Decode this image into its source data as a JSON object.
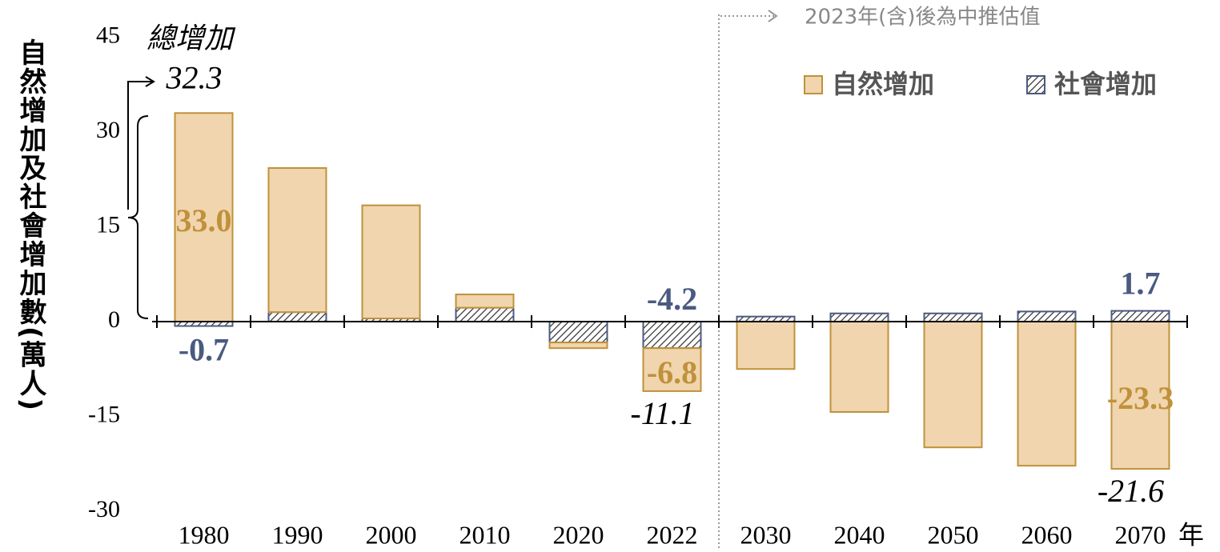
{
  "chart_data": {
    "type": "bar",
    "categories": [
      "1980",
      "1990",
      "2000",
      "2010",
      "2020",
      "2022",
      "2030",
      "2040",
      "2050",
      "2060",
      "2070"
    ],
    "series": [
      {
        "name": "自然增加",
        "color": "#f0d5ae",
        "values": [
          33.0,
          22.8,
          17.9,
          2.1,
          -0.9,
          -6.8,
          -7.5,
          -14.3,
          -19.9,
          -22.8,
          -23.3
        ],
        "value_labels": [
          "33.0",
          null,
          null,
          null,
          null,
          "-6.8",
          null,
          null,
          null,
          null,
          "-23.3"
        ]
      },
      {
        "name": "社會增加",
        "color": "#4a5a80",
        "values": [
          -0.7,
          1.5,
          0.5,
          2.2,
          -3.3,
          -4.2,
          0.8,
          1.3,
          1.3,
          1.6,
          1.7
        ],
        "value_labels": [
          "-0.7",
          null,
          null,
          null,
          null,
          "-4.2",
          null,
          null,
          null,
          null,
          "1.7"
        ]
      }
    ],
    "total_label": "總增加",
    "totals": [
      32.3,
      null,
      null,
      null,
      null,
      -11.1,
      null,
      null,
      null,
      null,
      -21.6
    ],
    "y_label": "自然增加及社會增加數(萬人)",
    "x_unit": "年",
    "note": "2023年(含)後為中推估值",
    "ylim": [
      -30,
      45
    ],
    "yticks": [
      -30,
      -15,
      0,
      15,
      30,
      45
    ],
    "legend": "top-right"
  }
}
